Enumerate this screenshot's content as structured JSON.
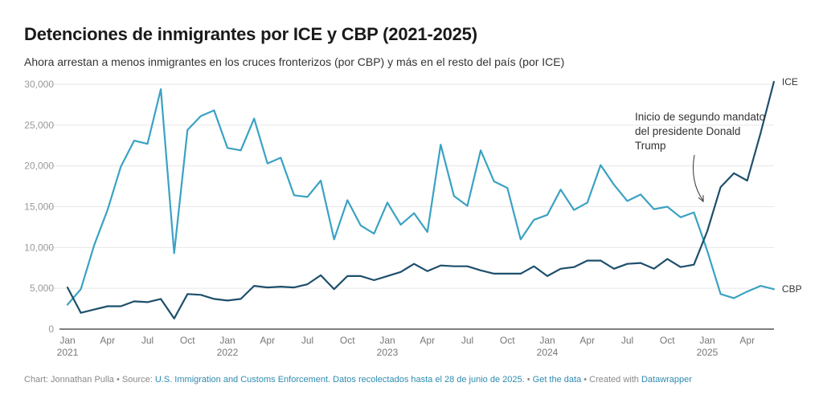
{
  "header": {
    "title": "Detenciones de inmigrantes por ICE y CBP (2021-2025)",
    "subtitle": "Ahora arrestan a menos inmigrantes en los cruces fronterizos (por CBP) y más en el resto del país (por ICE)"
  },
  "footer": {
    "chart_by": "Chart: Jonnathan Pulla",
    "sep1": " • Source: ",
    "source_link": "U.S. Immigration and Customs Enforcement. Datos recolectados hasta el 28 de junio de 2025.",
    "sep2": " • ",
    "get_data": "Get the data",
    "sep3": " • Created with ",
    "datawrapper": "Datawrapper"
  },
  "colors": {
    "ice": "#1d4f6c",
    "cbp": "#3aa2c3",
    "grid": "#e6e6e6",
    "axis": "#333333"
  },
  "chart_data": {
    "type": "line",
    "title": "Detenciones de inmigrantes por ICE y CBP (2021-2025)",
    "subtitle": "Ahora arrestan a menos inmigrantes en los cruces fronterizos (por CBP) y más en el resto del país (por ICE)",
    "xlabel": "",
    "ylabel": "",
    "ylim": [
      0,
      30000
    ],
    "yticks": [
      0,
      5000,
      10000,
      15000,
      20000,
      25000,
      30000
    ],
    "ytick_labels": [
      "0",
      "5,000",
      "10,000",
      "15,000",
      "20,000",
      "25,000",
      "30,000"
    ],
    "grid": true,
    "x_start": "2021-01",
    "x_end": "2025-06",
    "xtick_labels": [
      {
        "month_index": 0,
        "label": "Jan",
        "year": "2021"
      },
      {
        "month_index": 3,
        "label": "Apr",
        "year": ""
      },
      {
        "month_index": 6,
        "label": "Jul",
        "year": ""
      },
      {
        "month_index": 9,
        "label": "Oct",
        "year": ""
      },
      {
        "month_index": 12,
        "label": "Jan",
        "year": "2022"
      },
      {
        "month_index": 15,
        "label": "Apr",
        "year": ""
      },
      {
        "month_index": 18,
        "label": "Jul",
        "year": ""
      },
      {
        "month_index": 21,
        "label": "Oct",
        "year": ""
      },
      {
        "month_index": 24,
        "label": "Jan",
        "year": "2023"
      },
      {
        "month_index": 27,
        "label": "Apr",
        "year": ""
      },
      {
        "month_index": 30,
        "label": "Jul",
        "year": ""
      },
      {
        "month_index": 33,
        "label": "Oct",
        "year": ""
      },
      {
        "month_index": 36,
        "label": "Jan",
        "year": "2024"
      },
      {
        "month_index": 39,
        "label": "Apr",
        "year": ""
      },
      {
        "month_index": 42,
        "label": "Jul",
        "year": ""
      },
      {
        "month_index": 45,
        "label": "Oct",
        "year": ""
      },
      {
        "month_index": 48,
        "label": "Jan",
        "year": "2025"
      },
      {
        "month_index": 51,
        "label": "Apr",
        "year": ""
      }
    ],
    "legend": "inline-right",
    "series": [
      {
        "name": "ICE",
        "color": "#1d4f6c",
        "values": [
          5100,
          2000,
          2400,
          2800,
          2800,
          3400,
          3300,
          3700,
          1300,
          4300,
          4200,
          3700,
          3500,
          3700,
          5300,
          5100,
          5200,
          5100,
          5500,
          6600,
          4900,
          6500,
          6500,
          6000,
          6500,
          7000,
          8000,
          7100,
          7800,
          7700,
          7700,
          7200,
          6800,
          6800,
          6800,
          7700,
          6500,
          7400,
          7600,
          8400,
          8400,
          7400,
          8000,
          8100,
          7400,
          8600,
          7600,
          7900,
          12000,
          17400,
          19100,
          18200,
          24000,
          30300
        ]
      },
      {
        "name": "CBP",
        "color": "#3aa2c3",
        "values": [
          3000,
          4900,
          10300,
          14600,
          19900,
          23100,
          22700,
          29400,
          9300,
          24400,
          26100,
          26800,
          22200,
          21900,
          25800,
          20300,
          21000,
          16400,
          16200,
          18200,
          11000,
          15800,
          12700,
          11700,
          15500,
          12800,
          14200,
          11900,
          22600,
          16300,
          15100,
          21900,
          18100,
          17300,
          11000,
          13400,
          14000,
          17100,
          14600,
          15500,
          20100,
          17700,
          15700,
          16500,
          14700,
          15000,
          13700,
          14300,
          9600,
          4300,
          3800,
          4600,
          5300,
          4900
        ]
      }
    ],
    "annotations": [
      {
        "lines": [
          "Inicio de segundo mandato",
          "del presidente Donald",
          "Trump"
        ],
        "points_to_month_index": 48
      }
    ]
  }
}
